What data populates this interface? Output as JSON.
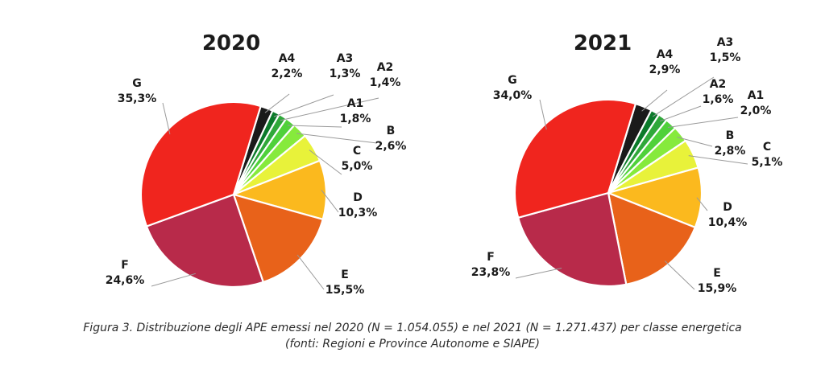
{
  "chart_data": [
    {
      "type": "pie",
      "title": "2020",
      "slices": [
        {
          "label": "A4",
          "value": 2.2,
          "text": "2,2%",
          "color": "#1a1a1a"
        },
        {
          "label": "A3",
          "value": 1.3,
          "text": "1,3%",
          "color": "#0b7a2a"
        },
        {
          "label": "A2",
          "value": 1.4,
          "text": "1,4%",
          "color": "#2fa83a"
        },
        {
          "label": "A1",
          "value": 1.8,
          "text": "1,8%",
          "color": "#4fd13a"
        },
        {
          "label": "B",
          "value": 2.6,
          "text": "2,6%",
          "color": "#86ea3c"
        },
        {
          "label": "C",
          "value": 5.0,
          "text": "5,0%",
          "color": "#e8f23a"
        },
        {
          "label": "D",
          "value": 10.3,
          "text": "10,3%",
          "color": "#fbb91e"
        },
        {
          "label": "E",
          "value": 15.5,
          "text": "15,5%",
          "color": "#e8621a"
        },
        {
          "label": "F",
          "value": 24.6,
          "text": "24,6%",
          "color": "#b82a4a"
        },
        {
          "label": "G",
          "value": 35.3,
          "text": "35,3%",
          "color": "#f0251e"
        }
      ]
    },
    {
      "type": "pie",
      "title": "2021",
      "slices": [
        {
          "label": "A4",
          "value": 2.9,
          "text": "2,9%",
          "color": "#1a1a1a"
        },
        {
          "label": "A3",
          "value": 1.5,
          "text": "1,5%",
          "color": "#0b7a2a"
        },
        {
          "label": "A2",
          "value": 1.6,
          "text": "1,6%",
          "color": "#2fa83a"
        },
        {
          "label": "A1",
          "value": 2.0,
          "text": "2,0%",
          "color": "#4fd13a"
        },
        {
          "label": "B",
          "value": 2.8,
          "text": "2,8%",
          "color": "#86ea3c"
        },
        {
          "label": "C",
          "value": 5.1,
          "text": "5,1%",
          "color": "#e8f23a"
        },
        {
          "label": "D",
          "value": 10.4,
          "text": "10,4%",
          "color": "#fbb91e"
        },
        {
          "label": "E",
          "value": 15.9,
          "text": "15,9%",
          "color": "#e8621a"
        },
        {
          "label": "F",
          "value": 23.8,
          "text": "23,8%",
          "color": "#b82a4a"
        },
        {
          "label": "G",
          "value": 34.0,
          "text": "34,0%",
          "color": "#f0251e"
        }
      ]
    }
  ],
  "caption": {
    "line1": "Figura 3. Distribuzione degli APE emessi nel 2020 (N = 1.054.055) e nel 2021 (N = 1.271.437) per classe energetica",
    "line2": "(fonti: Regioni e Province Autonome e SIAPE)"
  }
}
